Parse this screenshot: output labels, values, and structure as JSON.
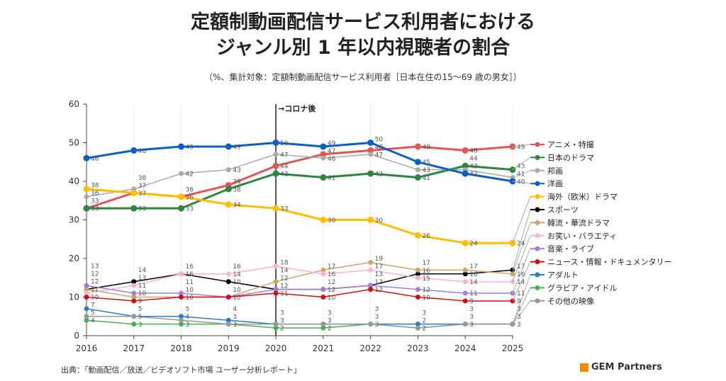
{
  "title_line1": "定額制動画配信サービス利用者における",
  "title_line2": "ジャンル別 1 年以内視聴者の割合",
  "subtitle": "（%、集計対象：定額制動画配信サービス利用者［日本在住の15～69 歳の男女］）",
  "source": "出典：「動画配信／放送／ビデオソフト市場 ユーザー分析レポート」",
  "logo": "GEM Partners",
  "chart_data": {
    "type": "line",
    "x": [
      2016,
      2017,
      2018,
      2019,
      2020,
      2021,
      2022,
      2023,
      2024,
      2025
    ],
    "ylim": [
      0,
      60
    ],
    "yticks": [
      0,
      10,
      20,
      30,
      40,
      50,
      60
    ],
    "grid": "vertical",
    "legend": "right",
    "annotation": {
      "x": 2020,
      "label": "コロナ後"
    },
    "series": [
      {
        "name": "アニメ・特撮",
        "color": "#e05555",
        "width": 3,
        "values": [
          33,
          37,
          36,
          39,
          44,
          47,
          48,
          49,
          48,
          49
        ]
      },
      {
        "name": "日本のドラマ",
        "color": "#2e8540",
        "width": 3,
        "values": [
          33,
          33,
          33,
          38,
          42,
          41,
          42,
          41,
          44,
          43
        ]
      },
      {
        "name": "邦画",
        "color": "#aaaaaa",
        "width": 1.5,
        "values": [
          36,
          38,
          42,
          43,
          47,
          46,
          47,
          43,
          43,
          41
        ]
      },
      {
        "name": "洋画",
        "color": "#0a5fc4",
        "width": 3,
        "values": [
          46,
          48,
          49,
          49,
          50,
          49,
          50,
          45,
          42,
          40
        ]
      },
      {
        "name": "海外（欧米）ドラマ",
        "color": "#ffbf00",
        "width": 3,
        "values": [
          38,
          37,
          36,
          34,
          33,
          30,
          30,
          26,
          24,
          24
        ]
      },
      {
        "name": "スポーツ",
        "color": "#000000",
        "width": 1.5,
        "values": [
          12,
          14,
          16,
          14,
          12,
          12,
          13,
          16,
          16,
          17
        ]
      },
      {
        "name": "韓流・華流ドラマ",
        "color": "#c9a66b",
        "width": 1.5,
        "values": [
          12,
          10,
          10,
          10,
          14,
          17,
          19,
          17,
          17,
          16
        ]
      },
      {
        "name": "お笑い・バラエティ",
        "color": "#f7b6c8",
        "width": 1.5,
        "values": [
          11,
          13,
          16,
          16,
          18,
          16,
          17,
          15,
          14,
          14
        ]
      },
      {
        "name": "音楽・ライブ",
        "color": "#a57fd0",
        "width": 1.5,
        "values": [
          13,
          11,
          11,
          10,
          12,
          12,
          13,
          12,
          11,
          11
        ]
      },
      {
        "name": "ニュース・情報・ドキュメンタリー",
        "color": "#d01010",
        "width": 1.5,
        "values": [
          10,
          9,
          10,
          10,
          11,
          10,
          12,
          10,
          9,
          9
        ]
      },
      {
        "name": "アダルト",
        "color": "#2c7bbf",
        "width": 1.5,
        "values": [
          7,
          5,
          5,
          4,
          3,
          3,
          3,
          3,
          3,
          3
        ]
      },
      {
        "name": "グラビア・アイドル",
        "color": "#4caf50",
        "width": 1.5,
        "values": [
          4,
          3,
          3,
          3,
          2,
          2,
          3,
          2,
          3,
          3
        ]
      },
      {
        "name": "その他の映像",
        "color": "#999999",
        "width": 1.5,
        "values": [
          5,
          5,
          4,
          3,
          3,
          3,
          3,
          2,
          3,
          3
        ]
      }
    ]
  }
}
